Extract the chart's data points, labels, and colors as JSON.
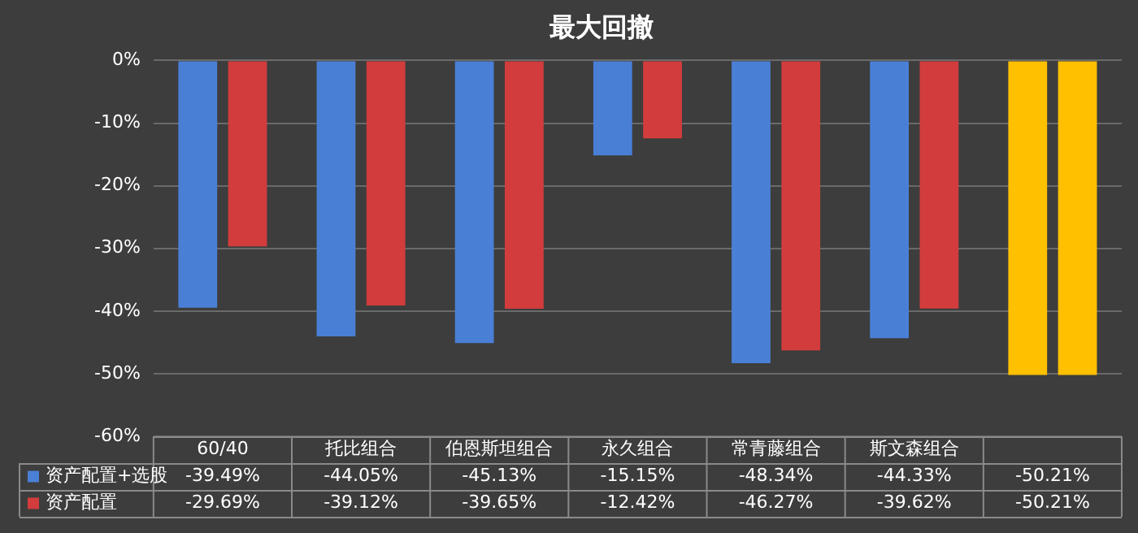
{
  "chart_data": {
    "type": "bar",
    "title": "最大回撤",
    "categories": [
      "60/40",
      "托比组合",
      "伯恩斯坦组合",
      "永久组合",
      "常青藤组合",
      "斯文森组合",
      null
    ],
    "series": [
      {
        "name": "资产配置+选股",
        "color": "#4a7fd6",
        "colors": [
          "#4a7fd6",
          "#4a7fd6",
          "#4a7fd6",
          "#4a7fd6",
          "#4a7fd6",
          "#4a7fd6",
          "#ffc000"
        ],
        "values": [
          -39.49,
          -44.05,
          -45.13,
          -15.15,
          -48.34,
          -44.33,
          -50.21
        ],
        "value_labels": [
          "-39.49%",
          "-44.05%",
          "-45.13%",
          "-15.15%",
          "-48.34%",
          "-44.33%",
          "-50.21%"
        ]
      },
      {
        "name": "资产配置",
        "color": "#d23c3c",
        "colors": [
          "#d23c3c",
          "#d23c3c",
          "#d23c3c",
          "#d23c3c",
          "#d23c3c",
          "#d23c3c",
          "#ffc000"
        ],
        "values": [
          -29.69,
          -39.12,
          -39.65,
          -12.42,
          -46.27,
          -39.62,
          -50.21
        ],
        "value_labels": [
          "-29.69%",
          "-39.12%",
          "-39.65%",
          "-12.42%",
          "-46.27%",
          "-39.62%",
          "-50.21%"
        ]
      }
    ],
    "ylim": [
      -60,
      0
    ],
    "yticks": [
      {
        "value": 0,
        "label": "0%"
      },
      {
        "value": -10,
        "label": "-10%"
      },
      {
        "value": -20,
        "label": "-20%"
      },
      {
        "value": -30,
        "label": "-30%"
      },
      {
        "value": -40,
        "label": "-40%"
      },
      {
        "value": -50,
        "label": "-50%"
      },
      {
        "value": -60,
        "label": "-60%"
      }
    ],
    "grid": "y",
    "legend": "bottom left"
  }
}
